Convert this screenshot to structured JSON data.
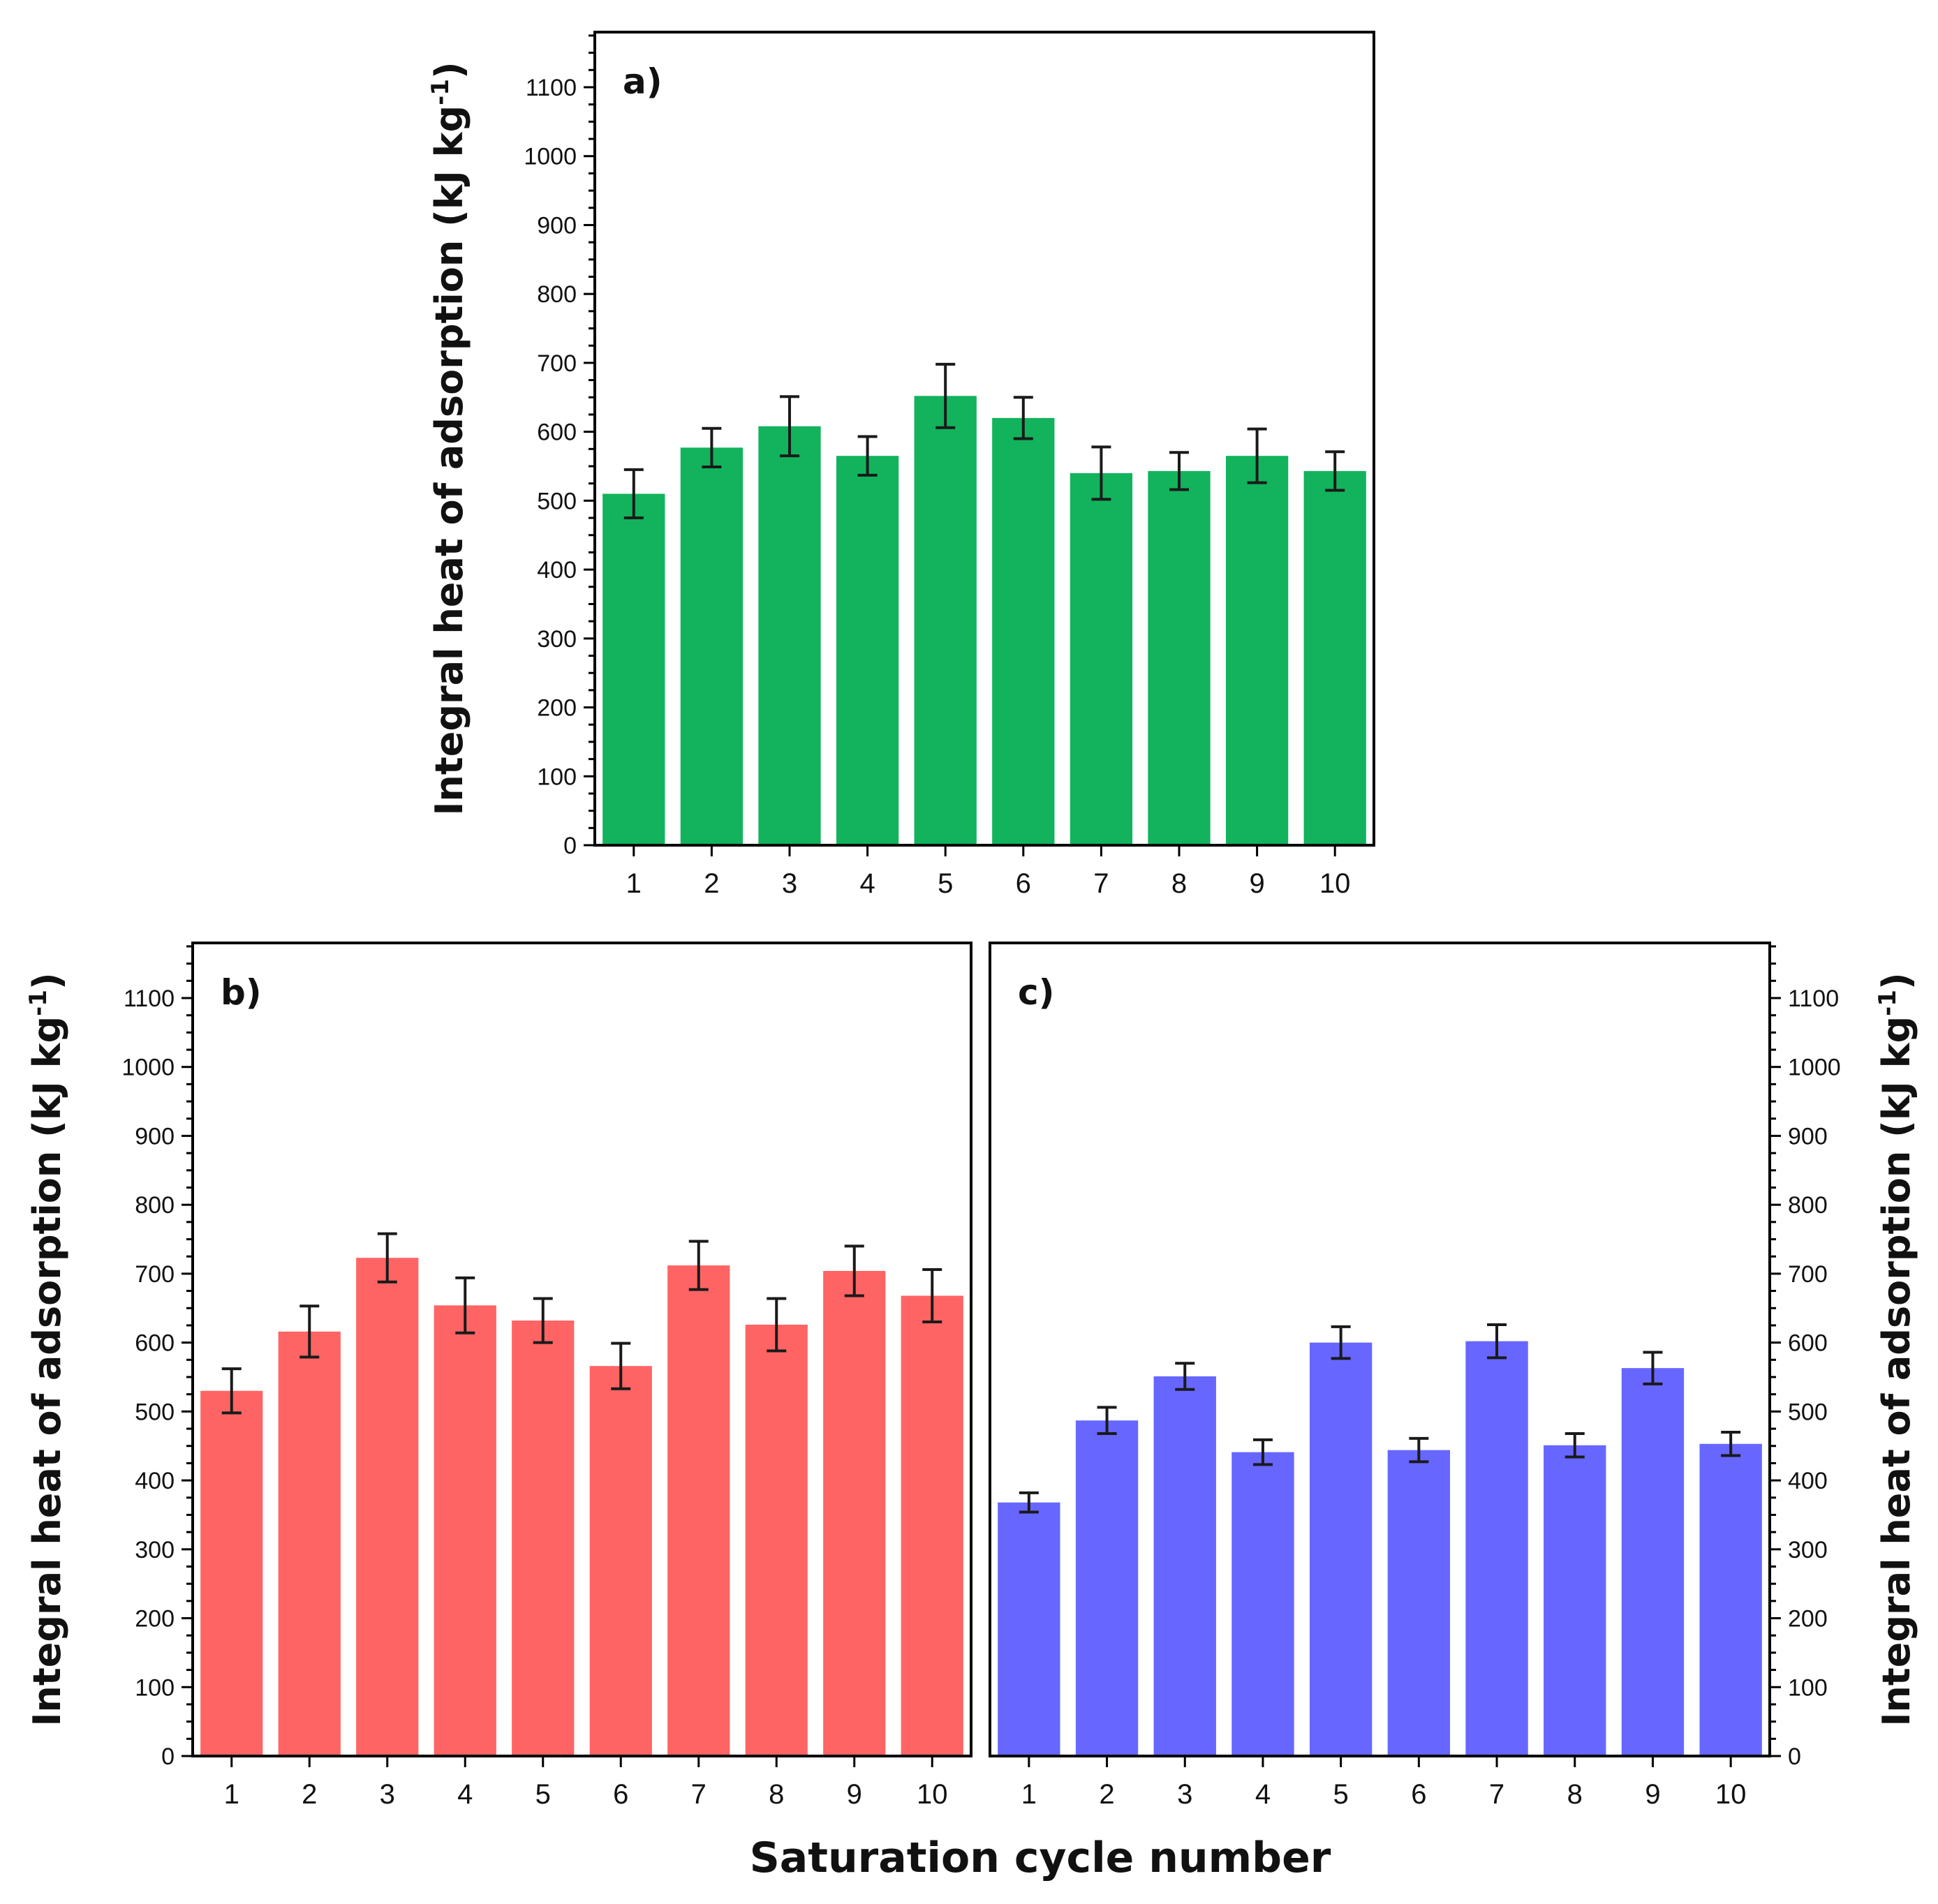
{
  "figure": {
    "shared_xlabel": "Saturation cycle number"
  },
  "chart_data": [
    {
      "type": "bar",
      "panel_label": "a)",
      "color": "#12b35c",
      "categories": [
        "1",
        "2",
        "3",
        "4",
        "5",
        "6",
        "7",
        "8",
        "9",
        "10"
      ],
      "values": [
        510,
        577,
        608,
        565,
        652,
        620,
        540,
        543,
        565,
        543
      ],
      "errors": [
        35,
        28,
        43,
        28,
        46,
        30,
        38,
        27,
        39,
        28
      ],
      "ylabel": "Integral heat of adsorption (kJ kg",
      "ylabel_sup": "-1",
      "ylabel_close": ")",
      "yaxis_side": "left",
      "ylim": [
        0,
        1180
      ],
      "yticks": [
        0,
        100,
        200,
        300,
        400,
        500,
        600,
        700,
        800,
        900,
        1000,
        1100
      ],
      "xlabel": "Saturation cycle number"
    },
    {
      "type": "bar",
      "panel_label": "b)",
      "color": "#ff6464",
      "categories": [
        "1",
        "2",
        "3",
        "4",
        "5",
        "6",
        "7",
        "8",
        "9",
        "10"
      ],
      "values": [
        530,
        616,
        723,
        654,
        632,
        566,
        712,
        626,
        704,
        668
      ],
      "errors": [
        32,
        37,
        35,
        40,
        32,
        33,
        35,
        38,
        36,
        38
      ],
      "ylabel": "Integral heat of adsorption (kJ kg",
      "ylabel_sup": "-1",
      "ylabel_close": ")",
      "yaxis_side": "left",
      "ylim": [
        0,
        1180
      ],
      "yticks": [
        0,
        100,
        200,
        300,
        400,
        500,
        600,
        700,
        800,
        900,
        1000,
        1100
      ],
      "xlabel": "Saturation cycle number"
    },
    {
      "type": "bar",
      "panel_label": "c)",
      "color": "#6767ff",
      "categories": [
        "1",
        "2",
        "3",
        "4",
        "5",
        "6",
        "7",
        "8",
        "9",
        "10"
      ],
      "values": [
        368,
        487,
        551,
        441,
        600,
        444,
        602,
        451,
        563,
        453
      ],
      "errors": [
        14,
        19,
        19,
        18,
        23,
        17,
        24,
        17,
        23,
        17
      ],
      "ylabel": "Integral heat of adsorption (kJ kg",
      "ylabel_sup": "-1",
      "ylabel_close": ")",
      "yaxis_side": "right",
      "ylim": [
        0,
        1180
      ],
      "yticks": [
        0,
        100,
        200,
        300,
        400,
        500,
        600,
        700,
        800,
        900,
        1000,
        1100
      ],
      "xlabel": "Saturation cycle number"
    }
  ]
}
